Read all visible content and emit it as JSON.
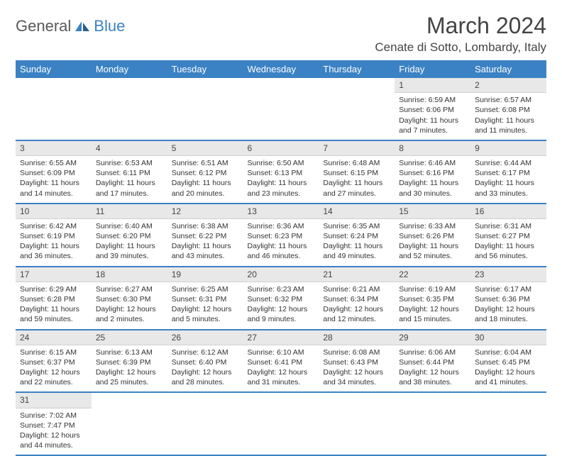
{
  "logo": {
    "text1": "General",
    "text2": "Blue"
  },
  "title": "March 2024",
  "location": "Cenate di Sotto, Lombardy, Italy",
  "colors": {
    "header_bg": "#3b82c4",
    "header_text": "#ffffff",
    "daynum_bg": "#e8e8e8",
    "divider": "#3b82c4"
  },
  "weekdays": [
    "Sunday",
    "Monday",
    "Tuesday",
    "Wednesday",
    "Thursday",
    "Friday",
    "Saturday"
  ],
  "weeks": [
    [
      {
        "blank": true
      },
      {
        "blank": true
      },
      {
        "blank": true
      },
      {
        "blank": true
      },
      {
        "blank": true
      },
      {
        "n": "1",
        "sr": "Sunrise: 6:59 AM",
        "ss": "Sunset: 6:06 PM",
        "dl": "Daylight: 11 hours and 7 minutes."
      },
      {
        "n": "2",
        "sr": "Sunrise: 6:57 AM",
        "ss": "Sunset: 6:08 PM",
        "dl": "Daylight: 11 hours and 11 minutes."
      }
    ],
    [
      {
        "n": "3",
        "sr": "Sunrise: 6:55 AM",
        "ss": "Sunset: 6:09 PM",
        "dl": "Daylight: 11 hours and 14 minutes."
      },
      {
        "n": "4",
        "sr": "Sunrise: 6:53 AM",
        "ss": "Sunset: 6:11 PM",
        "dl": "Daylight: 11 hours and 17 minutes."
      },
      {
        "n": "5",
        "sr": "Sunrise: 6:51 AM",
        "ss": "Sunset: 6:12 PM",
        "dl": "Daylight: 11 hours and 20 minutes."
      },
      {
        "n": "6",
        "sr": "Sunrise: 6:50 AM",
        "ss": "Sunset: 6:13 PM",
        "dl": "Daylight: 11 hours and 23 minutes."
      },
      {
        "n": "7",
        "sr": "Sunrise: 6:48 AM",
        "ss": "Sunset: 6:15 PM",
        "dl": "Daylight: 11 hours and 27 minutes."
      },
      {
        "n": "8",
        "sr": "Sunrise: 6:46 AM",
        "ss": "Sunset: 6:16 PM",
        "dl": "Daylight: 11 hours and 30 minutes."
      },
      {
        "n": "9",
        "sr": "Sunrise: 6:44 AM",
        "ss": "Sunset: 6:17 PM",
        "dl": "Daylight: 11 hours and 33 minutes."
      }
    ],
    [
      {
        "n": "10",
        "sr": "Sunrise: 6:42 AM",
        "ss": "Sunset: 6:19 PM",
        "dl": "Daylight: 11 hours and 36 minutes."
      },
      {
        "n": "11",
        "sr": "Sunrise: 6:40 AM",
        "ss": "Sunset: 6:20 PM",
        "dl": "Daylight: 11 hours and 39 minutes."
      },
      {
        "n": "12",
        "sr": "Sunrise: 6:38 AM",
        "ss": "Sunset: 6:22 PM",
        "dl": "Daylight: 11 hours and 43 minutes."
      },
      {
        "n": "13",
        "sr": "Sunrise: 6:36 AM",
        "ss": "Sunset: 6:23 PM",
        "dl": "Daylight: 11 hours and 46 minutes."
      },
      {
        "n": "14",
        "sr": "Sunrise: 6:35 AM",
        "ss": "Sunset: 6:24 PM",
        "dl": "Daylight: 11 hours and 49 minutes."
      },
      {
        "n": "15",
        "sr": "Sunrise: 6:33 AM",
        "ss": "Sunset: 6:26 PM",
        "dl": "Daylight: 11 hours and 52 minutes."
      },
      {
        "n": "16",
        "sr": "Sunrise: 6:31 AM",
        "ss": "Sunset: 6:27 PM",
        "dl": "Daylight: 11 hours and 56 minutes."
      }
    ],
    [
      {
        "n": "17",
        "sr": "Sunrise: 6:29 AM",
        "ss": "Sunset: 6:28 PM",
        "dl": "Daylight: 11 hours and 59 minutes."
      },
      {
        "n": "18",
        "sr": "Sunrise: 6:27 AM",
        "ss": "Sunset: 6:30 PM",
        "dl": "Daylight: 12 hours and 2 minutes."
      },
      {
        "n": "19",
        "sr": "Sunrise: 6:25 AM",
        "ss": "Sunset: 6:31 PM",
        "dl": "Daylight: 12 hours and 5 minutes."
      },
      {
        "n": "20",
        "sr": "Sunrise: 6:23 AM",
        "ss": "Sunset: 6:32 PM",
        "dl": "Daylight: 12 hours and 9 minutes."
      },
      {
        "n": "21",
        "sr": "Sunrise: 6:21 AM",
        "ss": "Sunset: 6:34 PM",
        "dl": "Daylight: 12 hours and 12 minutes."
      },
      {
        "n": "22",
        "sr": "Sunrise: 6:19 AM",
        "ss": "Sunset: 6:35 PM",
        "dl": "Daylight: 12 hours and 15 minutes."
      },
      {
        "n": "23",
        "sr": "Sunrise: 6:17 AM",
        "ss": "Sunset: 6:36 PM",
        "dl": "Daylight: 12 hours and 18 minutes."
      }
    ],
    [
      {
        "n": "24",
        "sr": "Sunrise: 6:15 AM",
        "ss": "Sunset: 6:37 PM",
        "dl": "Daylight: 12 hours and 22 minutes."
      },
      {
        "n": "25",
        "sr": "Sunrise: 6:13 AM",
        "ss": "Sunset: 6:39 PM",
        "dl": "Daylight: 12 hours and 25 minutes."
      },
      {
        "n": "26",
        "sr": "Sunrise: 6:12 AM",
        "ss": "Sunset: 6:40 PM",
        "dl": "Daylight: 12 hours and 28 minutes."
      },
      {
        "n": "27",
        "sr": "Sunrise: 6:10 AM",
        "ss": "Sunset: 6:41 PM",
        "dl": "Daylight: 12 hours and 31 minutes."
      },
      {
        "n": "28",
        "sr": "Sunrise: 6:08 AM",
        "ss": "Sunset: 6:43 PM",
        "dl": "Daylight: 12 hours and 34 minutes."
      },
      {
        "n": "29",
        "sr": "Sunrise: 6:06 AM",
        "ss": "Sunset: 6:44 PM",
        "dl": "Daylight: 12 hours and 38 minutes."
      },
      {
        "n": "30",
        "sr": "Sunrise: 6:04 AM",
        "ss": "Sunset: 6:45 PM",
        "dl": "Daylight: 12 hours and 41 minutes."
      }
    ],
    [
      {
        "n": "31",
        "sr": "Sunrise: 7:02 AM",
        "ss": "Sunset: 7:47 PM",
        "dl": "Daylight: 12 hours and 44 minutes."
      },
      {
        "blank": true
      },
      {
        "blank": true
      },
      {
        "blank": true
      },
      {
        "blank": true
      },
      {
        "blank": true
      },
      {
        "blank": true
      }
    ]
  ]
}
